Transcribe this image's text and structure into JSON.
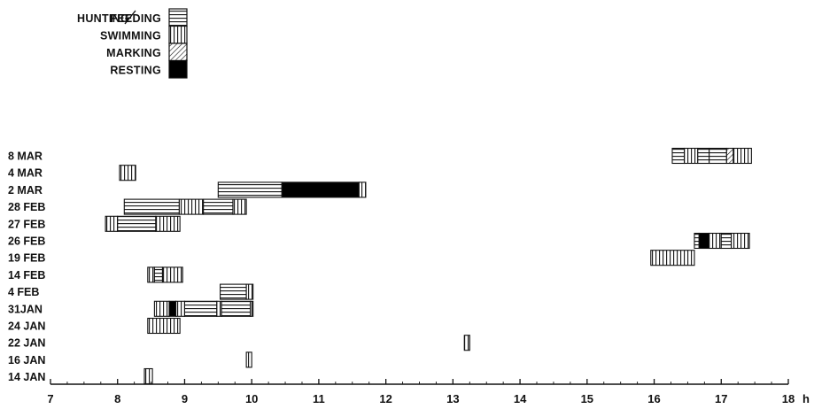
{
  "chart_data": {
    "type": "bar",
    "orientation": "horizontal-timeline",
    "xlabel": "h",
    "x_ticks": [
      "7",
      "8",
      "9",
      "10",
      "11",
      "12",
      "13",
      "14",
      "15",
      "16",
      "17",
      "18"
    ],
    "xlim": [
      7,
      18
    ],
    "legend_placement": "top-left",
    "legend": [
      {
        "key": "hunting",
        "label": "HUNTING",
        "label2": "FEEDING",
        "pattern": "horizontal-stripes"
      },
      {
        "key": "swimming",
        "label": "SWIMMING",
        "pattern": "vertical-stripes"
      },
      {
        "key": "marking",
        "label": "MARKING",
        "pattern": "diagonal-stripes"
      },
      {
        "key": "resting",
        "label": "RESTING",
        "pattern": "solid-black"
      }
    ],
    "categories": [
      "8 MAR",
      "4 MAR",
      "2 MAR",
      "28 FEB",
      "27 FEB",
      "26 FEB",
      "19 FEB",
      "14 FEB",
      "4 FEB",
      "31JAN",
      "24 JAN",
      "22 JAN",
      "16 JAN",
      "14 JAN"
    ],
    "rows": [
      {
        "date": "8 MAR",
        "segments": [
          {
            "start": 16.27,
            "end": 16.45,
            "activity": "hunting"
          },
          {
            "start": 16.45,
            "end": 16.65,
            "activity": "swimming"
          },
          {
            "start": 16.65,
            "end": 16.82,
            "activity": "hunting"
          },
          {
            "start": 16.82,
            "end": 17.08,
            "activity": "hunting"
          },
          {
            "start": 17.08,
            "end": 17.18,
            "activity": "marking"
          },
          {
            "start": 17.18,
            "end": 17.45,
            "activity": "swimming"
          }
        ]
      },
      {
        "date": "4 MAR",
        "segments": [
          {
            "start": 8.03,
            "end": 8.27,
            "activity": "swimming"
          }
        ]
      },
      {
        "date": "2 MAR",
        "segments": [
          {
            "start": 9.5,
            "end": 10.45,
            "activity": "hunting"
          },
          {
            "start": 10.45,
            "end": 11.6,
            "activity": "resting"
          },
          {
            "start": 11.6,
            "end": 11.7,
            "activity": "swimming"
          }
        ]
      },
      {
        "date": "28 FEB",
        "segments": [
          {
            "start": 8.1,
            "end": 8.92,
            "activity": "hunting"
          },
          {
            "start": 8.92,
            "end": 9.28,
            "activity": "swimming"
          },
          {
            "start": 9.28,
            "end": 9.72,
            "activity": "hunting"
          },
          {
            "start": 9.72,
            "end": 9.92,
            "activity": "swimming"
          }
        ]
      },
      {
        "date": "27 FEB",
        "segments": [
          {
            "start": 7.82,
            "end": 8.0,
            "activity": "swimming"
          },
          {
            "start": 8.0,
            "end": 8.57,
            "activity": "hunting"
          },
          {
            "start": 8.57,
            "end": 8.93,
            "activity": "swimming"
          }
        ]
      },
      {
        "date": "26 FEB",
        "segments": [
          {
            "start": 16.6,
            "end": 16.67,
            "activity": "hunting"
          },
          {
            "start": 16.67,
            "end": 16.82,
            "activity": "resting"
          },
          {
            "start": 16.82,
            "end": 17.0,
            "activity": "swimming"
          },
          {
            "start": 17.0,
            "end": 17.15,
            "activity": "hunting"
          },
          {
            "start": 17.15,
            "end": 17.42,
            "activity": "swimming"
          }
        ]
      },
      {
        "date": "19 FEB",
        "segments": [
          {
            "start": 15.95,
            "end": 16.6,
            "activity": "swimming"
          }
        ]
      },
      {
        "date": "14 FEB",
        "segments": [
          {
            "start": 8.45,
            "end": 8.55,
            "activity": "swimming"
          },
          {
            "start": 8.55,
            "end": 8.67,
            "activity": "hunting"
          },
          {
            "start": 8.67,
            "end": 8.97,
            "activity": "swimming"
          }
        ]
      },
      {
        "date": "4 FEB",
        "segments": [
          {
            "start": 9.53,
            "end": 9.92,
            "activity": "hunting"
          },
          {
            "start": 9.92,
            "end": 10.02,
            "activity": "swimming"
          }
        ]
      },
      {
        "date": "31JAN",
        "segments": [
          {
            "start": 8.55,
            "end": 8.77,
            "activity": "swimming"
          },
          {
            "start": 8.77,
            "end": 8.87,
            "activity": "resting"
          },
          {
            "start": 8.87,
            "end": 9.0,
            "activity": "swimming"
          },
          {
            "start": 9.0,
            "end": 9.48,
            "activity": "hunting"
          },
          {
            "start": 9.48,
            "end": 9.55,
            "activity": "swimming"
          },
          {
            "start": 9.55,
            "end": 9.98,
            "activity": "hunting"
          },
          {
            "start": 9.98,
            "end": 10.02,
            "activity": "swimming"
          }
        ]
      },
      {
        "date": "24 JAN",
        "segments": [
          {
            "start": 8.45,
            "end": 8.93,
            "activity": "swimming"
          }
        ]
      },
      {
        "date": "22 JAN",
        "segments": [
          {
            "start": 13.17,
            "end": 13.25,
            "activity": "swimming"
          }
        ]
      },
      {
        "date": "16 JAN",
        "segments": [
          {
            "start": 9.92,
            "end": 10.0,
            "activity": "swimming"
          }
        ]
      },
      {
        "date": "14 JAN",
        "segments": [
          {
            "start": 8.4,
            "end": 8.52,
            "activity": "swimming"
          }
        ]
      }
    ]
  }
}
